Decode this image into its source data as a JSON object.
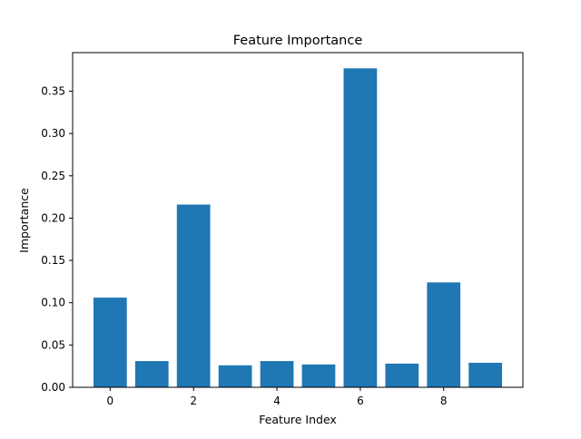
{
  "colors": {
    "bar": "#1f77b4",
    "axis": "#000000",
    "background": "#ffffff"
  },
  "chart_data": {
    "type": "bar",
    "title": "Feature Importance",
    "xlabel": "Feature Index",
    "ylabel": "Importance",
    "x": [
      0,
      1,
      2,
      3,
      4,
      5,
      6,
      7,
      8,
      9
    ],
    "values": [
      0.106,
      0.031,
      0.216,
      0.026,
      0.031,
      0.027,
      0.377,
      0.028,
      0.124,
      0.029
    ],
    "bar_width": 0.8,
    "xlim": [
      -0.9,
      9.9
    ],
    "ylim": [
      0,
      0.3956
    ],
    "xticks": [
      0,
      2,
      4,
      6,
      8
    ],
    "xtick_labels": [
      "0",
      "2",
      "4",
      "6",
      "8"
    ],
    "yticks": [
      0.0,
      0.05,
      0.1,
      0.15,
      0.2,
      0.25,
      0.3,
      0.35
    ],
    "ytick_labels": [
      "0.00",
      "0.05",
      "0.10",
      "0.15",
      "0.20",
      "0.25",
      "0.30",
      "0.35"
    ],
    "grid": false,
    "legend": "none"
  }
}
